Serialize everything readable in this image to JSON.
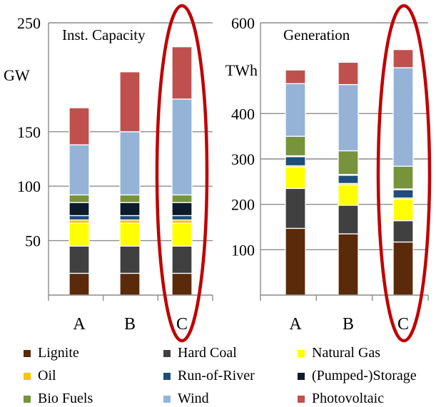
{
  "colors": {
    "Lignite": "#5a2a0a",
    "Hard Coal": "#404040",
    "Natural Gas": "#ffff00",
    "Oil": "#ffc000",
    "Run-of-River": "#1f4e79",
    "(Pumped-)Storage": "#0d1b2a",
    "Bio Fuels": "#77933c",
    "Wind": "#95b3d7",
    "Photovoltaic": "#c0504d",
    "highlight": "#c00000"
  },
  "legend": [
    {
      "label": "Lignite"
    },
    {
      "label": "Hard Coal"
    },
    {
      "label": "Natural Gas"
    },
    {
      "label": "Oil"
    },
    {
      "label": "Run-of-River"
    },
    {
      "label": "(Pumped-)Storage"
    },
    {
      "label": "Bio Fuels"
    },
    {
      "label": "Wind"
    },
    {
      "label": "Photovoltaic"
    }
  ],
  "chart_data": [
    {
      "type": "bar",
      "stacked": true,
      "title": "Inst. Capacity",
      "ylabel": "GW",
      "ylim": [
        0,
        250
      ],
      "yticks": [
        50,
        100,
        150,
        250
      ],
      "categories": [
        "A",
        "B",
        "C"
      ],
      "highlight_category": "C",
      "series": [
        {
          "name": "Lignite",
          "values": [
            20,
            20,
            20
          ]
        },
        {
          "name": "Hard Coal",
          "values": [
            25,
            25,
            25
          ]
        },
        {
          "name": "Natural Gas",
          "values": [
            21,
            21,
            21
          ]
        },
        {
          "name": "Oil",
          "values": [
            3,
            3,
            3
          ]
        },
        {
          "name": "Run-of-River",
          "values": [
            4,
            4,
            4
          ]
        },
        {
          "name": "(Pumped-)Storage",
          "values": [
            12,
            12,
            12
          ]
        },
        {
          "name": "Bio Fuels",
          "values": [
            7,
            7,
            7
          ]
        },
        {
          "name": "Wind",
          "values": [
            46,
            58,
            88
          ]
        },
        {
          "name": "Photovoltaic",
          "values": [
            34,
            55,
            48
          ]
        }
      ]
    },
    {
      "type": "bar",
      "stacked": true,
      "title": "Generation",
      "ylabel": "TWh",
      "ylim": [
        0,
        600
      ],
      "yticks": [
        100,
        200,
        300,
        400,
        600
      ],
      "categories": [
        "A",
        "B",
        "C"
      ],
      "highlight_category": "C",
      "series": [
        {
          "name": "Lignite",
          "values": [
            147,
            135,
            117
          ]
        },
        {
          "name": "Hard Coal",
          "values": [
            88,
            63,
            47
          ]
        },
        {
          "name": "Natural Gas",
          "values": [
            47,
            45,
            47
          ]
        },
        {
          "name": "Oil",
          "values": [
            3,
            3,
            3
          ]
        },
        {
          "name": "Run-of-River",
          "values": [
            20,
            18,
            18
          ]
        },
        {
          "name": "(Pumped-)Storage",
          "values": [
            2,
            2,
            2
          ]
        },
        {
          "name": "Bio Fuels",
          "values": [
            43,
            52,
            50
          ]
        },
        {
          "name": "Wind",
          "values": [
            116,
            146,
            217
          ]
        },
        {
          "name": "Photovoltaic",
          "values": [
            30,
            49,
            40
          ]
        }
      ]
    }
  ]
}
